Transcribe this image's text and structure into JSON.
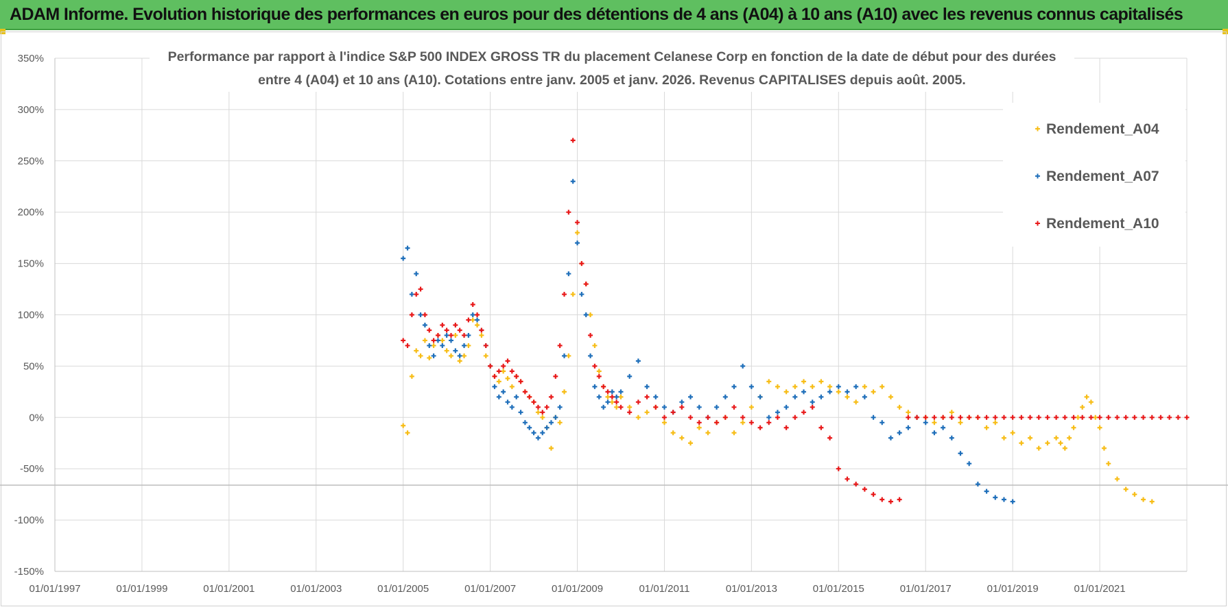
{
  "banner": {
    "title": "ADAM Informe. Evolution historique des performances en euros pour des détentions de 4 ans (A04) à 10 ans (A10) avec les revenus connus capitalisés"
  },
  "colors": {
    "banner_bg": "#5fbf60",
    "series_a04": "#f7bd17",
    "series_a07": "#1f6fba",
    "series_a10": "#e8191a",
    "grid": "#d9d9d9",
    "text": "#595959"
  },
  "chart_data": {
    "type": "scatter",
    "title_lines": [
      "Performance par rapport à l'indice S&P 500 INDEX GROSS TR  du placement Celanese Corp en fonction de la date de début pour des durées",
      "entre 4 (A04) et 10 ans (A10).  Cotations entre janv. 2005 et janv. 2026. Revenus CAPITALISES  depuis août. 2005."
    ],
    "xlabel": "",
    "ylabel": "",
    "x_tick_labels": [
      "01/01/1997",
      "01/01/1999",
      "01/01/2001",
      "01/01/2003",
      "01/01/2005",
      "01/01/2007",
      "01/01/2009",
      "01/01/2011",
      "01/01/2013",
      "01/01/2015",
      "01/01/2017",
      "01/01/2019",
      "01/01/2021"
    ],
    "xlim": [
      1997.0,
      2023.0
    ],
    "y_tick_labels": [
      "350%",
      "300%",
      "250%",
      "200%",
      "150%",
      "100%",
      "50%",
      "0%",
      "-50%",
      "-100%",
      "-150%"
    ],
    "ylim": [
      -150,
      350
    ],
    "grid": true,
    "legend_position": "top-right",
    "series": [
      {
        "name": "Rendement_A04",
        "marker": "+",
        "x": [
          2005.0,
          2005.1,
          2005.2,
          2005.3,
          2005.4,
          2005.5,
          2005.6,
          2005.7,
          2005.8,
          2005.9,
          2006.0,
          2006.1,
          2006.2,
          2006.3,
          2006.4,
          2006.5,
          2006.6,
          2006.7,
          2006.8,
          2006.9,
          2007.0,
          2007.1,
          2007.2,
          2007.3,
          2007.4,
          2007.5,
          2007.6,
          2007.7,
          2007.8,
          2007.9,
          2008.0,
          2008.1,
          2008.2,
          2008.3,
          2008.4,
          2008.5,
          2008.6,
          2008.7,
          2008.8,
          2008.9,
          2009.0,
          2009.1,
          2009.2,
          2009.3,
          2009.4,
          2009.5,
          2009.6,
          2009.7,
          2009.8,
          2009.9,
          2010.0,
          2010.2,
          2010.4,
          2010.6,
          2010.8,
          2011.0,
          2011.2,
          2011.4,
          2011.6,
          2011.8,
          2012.0,
          2012.2,
          2012.4,
          2012.6,
          2012.8,
          2013.0,
          2013.2,
          2013.4,
          2013.6,
          2013.8,
          2014.0,
          2014.2,
          2014.4,
          2014.6,
          2014.8,
          2015.0,
          2015.2,
          2015.4,
          2015.6,
          2015.8,
          2016.0,
          2016.2,
          2016.4,
          2016.6,
          2016.8,
          2017.0,
          2017.2,
          2017.4,
          2017.6,
          2017.8,
          2018.0,
          2018.2,
          2018.4,
          2018.6,
          2018.8,
          2019.0,
          2019.2,
          2019.4,
          2019.6,
          2019.8,
          2020.0,
          2020.1,
          2020.2,
          2020.3,
          2020.4,
          2020.5,
          2020.6,
          2020.7,
          2020.8,
          2020.9,
          2021.0,
          2021.1,
          2021.2,
          2021.4,
          2021.6,
          2021.8,
          2022.0,
          2022.2
        ],
        "y": [
          -8,
          -15,
          40,
          65,
          60,
          75,
          58,
          70,
          80,
          75,
          65,
          60,
          80,
          55,
          60,
          70,
          95,
          90,
          80,
          60,
          50,
          40,
          35,
          45,
          38,
          30,
          40,
          35,
          25,
          20,
          15,
          5,
          0,
          -10,
          -30,
          0,
          -5,
          25,
          60,
          120,
          180,
          150,
          130,
          100,
          70,
          45,
          30,
          20,
          15,
          10,
          20,
          10,
          0,
          5,
          10,
          -5,
          -15,
          -20,
          -25,
          -10,
          -15,
          -5,
          0,
          -15,
          -5,
          10,
          20,
          35,
          30,
          25,
          30,
          35,
          30,
          35,
          30,
          25,
          20,
          15,
          30,
          25,
          30,
          20,
          10,
          5,
          0,
          0,
          -5,
          0,
          5,
          -5,
          0,
          0,
          -10,
          -5,
          -20,
          -15,
          -25,
          -20,
          -30,
          -25,
          -20,
          -25,
          -30,
          -20,
          -10,
          0,
          10,
          20,
          15,
          0,
          -10,
          -30,
          -45,
          -60,
          -70,
          -75,
          -80,
          -82
        ]
      },
      {
        "name": "Rendement_A07",
        "marker": "+",
        "x": [
          2005.0,
          2005.1,
          2005.2,
          2005.3,
          2005.4,
          2005.5,
          2005.6,
          2005.7,
          2005.8,
          2005.9,
          2006.0,
          2006.1,
          2006.2,
          2006.3,
          2006.4,
          2006.5,
          2006.6,
          2006.7,
          2006.8,
          2006.9,
          2007.0,
          2007.1,
          2007.2,
          2007.3,
          2007.4,
          2007.5,
          2007.6,
          2007.7,
          2007.8,
          2007.9,
          2008.0,
          2008.1,
          2008.2,
          2008.3,
          2008.4,
          2008.5,
          2008.6,
          2008.7,
          2008.8,
          2008.9,
          2009.0,
          2009.1,
          2009.2,
          2009.3,
          2009.4,
          2009.5,
          2009.6,
          2009.7,
          2009.8,
          2009.9,
          2010.0,
          2010.2,
          2010.4,
          2010.6,
          2010.8,
          2011.0,
          2011.2,
          2011.4,
          2011.6,
          2011.8,
          2012.0,
          2012.2,
          2012.4,
          2012.6,
          2012.8,
          2013.0,
          2013.2,
          2013.4,
          2013.6,
          2013.8,
          2014.0,
          2014.2,
          2014.4,
          2014.6,
          2014.8,
          2015.0,
          2015.2,
          2015.4,
          2015.6,
          2015.8,
          2016.0,
          2016.2,
          2016.4,
          2016.6,
          2016.8,
          2017.0,
          2017.2,
          2017.4,
          2017.6,
          2017.8,
          2018.0,
          2018.2,
          2018.4,
          2018.6,
          2018.8,
          2019.0
        ],
        "y": [
          155,
          165,
          120,
          140,
          100,
          90,
          70,
          60,
          75,
          70,
          80,
          75,
          65,
          60,
          70,
          80,
          100,
          95,
          85,
          70,
          50,
          30,
          20,
          25,
          15,
          10,
          20,
          5,
          -5,
          -10,
          -15,
          -20,
          -15,
          -10,
          -5,
          0,
          10,
          60,
          140,
          230,
          170,
          120,
          100,
          60,
          30,
          20,
          10,
          15,
          25,
          20,
          25,
          40,
          55,
          30,
          20,
          10,
          5,
          15,
          20,
          10,
          0,
          10,
          20,
          30,
          50,
          30,
          20,
          0,
          5,
          10,
          20,
          25,
          15,
          20,
          25,
          30,
          25,
          30,
          20,
          0,
          -5,
          -20,
          -15,
          -10,
          0,
          -5,
          -15,
          -10,
          -20,
          -35,
          -45,
          -65,
          -72,
          -78,
          -80,
          -82
        ]
      },
      {
        "name": "Rendement_A10",
        "marker": "+",
        "x": [
          2005.0,
          2005.1,
          2005.2,
          2005.3,
          2005.4,
          2005.5,
          2005.6,
          2005.7,
          2005.8,
          2005.9,
          2006.0,
          2006.1,
          2006.2,
          2006.3,
          2006.4,
          2006.5,
          2006.6,
          2006.7,
          2006.8,
          2006.9,
          2007.0,
          2007.1,
          2007.2,
          2007.3,
          2007.4,
          2007.5,
          2007.6,
          2007.7,
          2007.8,
          2007.9,
          2008.0,
          2008.1,
          2008.2,
          2008.3,
          2008.4,
          2008.5,
          2008.6,
          2008.7,
          2008.8,
          2008.9,
          2009.0,
          2009.1,
          2009.2,
          2009.3,
          2009.4,
          2009.5,
          2009.6,
          2009.7,
          2009.8,
          2009.9,
          2010.0,
          2010.2,
          2010.4,
          2010.6,
          2010.8,
          2011.0,
          2011.2,
          2011.4,
          2011.6,
          2011.8,
          2012.0,
          2012.2,
          2012.4,
          2012.6,
          2012.8,
          2013.0,
          2013.2,
          2013.4,
          2013.6,
          2013.8,
          2014.0,
          2014.2,
          2014.4,
          2014.6,
          2014.8,
          2015.0,
          2015.2,
          2015.4,
          2015.6,
          2015.8,
          2016.0,
          2016.2,
          2016.4,
          2016.6,
          2016.8,
          2017.0,
          2017.2,
          2017.4,
          2017.6,
          2017.8,
          2018.0,
          2018.2,
          2018.4,
          2018.6,
          2018.8,
          2019.0,
          2019.2,
          2019.4,
          2019.6,
          2019.8,
          2020.0,
          2020.2,
          2020.4,
          2020.6,
          2020.8,
          2021.0,
          2021.2,
          2021.4,
          2021.6,
          2021.8,
          2022.0,
          2022.2,
          2022.4,
          2022.6,
          2022.8,
          2023.0
        ],
        "y": [
          75,
          70,
          100,
          120,
          125,
          100,
          85,
          75,
          80,
          90,
          85,
          80,
          90,
          85,
          80,
          95,
          110,
          100,
          85,
          70,
          50,
          40,
          45,
          50,
          55,
          45,
          40,
          35,
          25,
          20,
          15,
          10,
          5,
          10,
          20,
          40,
          70,
          120,
          200,
          270,
          190,
          150,
          130,
          80,
          50,
          40,
          30,
          25,
          20,
          15,
          10,
          5,
          15,
          20,
          10,
          0,
          5,
          10,
          0,
          -5,
          0,
          -5,
          0,
          10,
          0,
          -5,
          -10,
          -5,
          0,
          -10,
          0,
          5,
          10,
          -10,
          -20,
          -50,
          -60,
          -65,
          -70,
          -75,
          -80,
          -82,
          -80,
          0,
          0,
          0,
          0,
          0,
          0,
          0,
          0,
          0,
          0,
          0,
          0,
          0,
          0,
          0,
          0,
          0,
          0,
          0,
          0,
          0,
          0,
          0,
          0,
          0,
          0,
          0,
          0,
          0,
          0,
          0,
          0,
          0
        ]
      }
    ]
  }
}
